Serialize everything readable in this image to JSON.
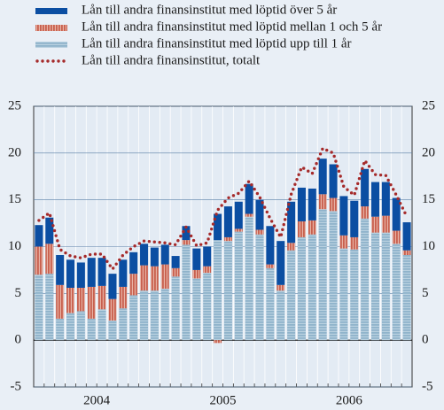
{
  "chart_data": {
    "type": "stacked_bar_line",
    "categories": [
      null,
      null,
      null,
      null,
      null,
      "2004",
      null,
      null,
      null,
      null,
      null,
      null,
      null,
      null,
      null,
      null,
      null,
      "2005",
      null,
      null,
      null,
      null,
      null,
      null,
      null,
      null,
      null,
      null,
      null,
      "2006",
      null,
      null,
      null,
      null,
      null,
      null
    ],
    "series": [
      {
        "name": "Lån till andra finansinstitut med löptid upp till 1 år",
        "color": "#8fb3cb",
        "pattern": "horizontal-stripes",
        "values": [
          7,
          7.1,
          2.3,
          2.9,
          3.1,
          2.3,
          3.3,
          2.1,
          3.4,
          4.8,
          5.3,
          5.3,
          5.5,
          6.8,
          10.2,
          6.6,
          7.2,
          10.7,
          10.6,
          11.6,
          13.2,
          11.3,
          7.7,
          5.3,
          9.6,
          11,
          11.3,
          14,
          13.8,
          9.8,
          9.7,
          13,
          11.5,
          11.5,
          10.3,
          9.1
        ]
      },
      {
        "name": "Lån till andra finansinstitut med löptid mellan 1 och 5 år",
        "color": "#c8604e",
        "pattern": "vertical-stripes",
        "values": [
          3.0,
          3.2,
          3.6,
          2.7,
          2.5,
          3.4,
          2.5,
          2.3,
          2.3,
          2.3,
          2.7,
          2.6,
          2.6,
          0.9,
          0.5,
          0.9,
          0.7,
          -0.3,
          0.4,
          0.3,
          0.3,
          0.5,
          0.4,
          0.6,
          0.8,
          1.7,
          1.5,
          1.6,
          1.4,
          1.4,
          1.3,
          1.3,
          1.7,
          1.8,
          1.4,
          0.5
        ]
      },
      {
        "name": "Lån till andra finansinstitut med löptid över 5 år",
        "color": "#0b4ea2",
        "pattern": "solid",
        "values": [
          2.3,
          2.8,
          3.2,
          3.0,
          2.7,
          3.1,
          3.0,
          2.7,
          2.9,
          2.3,
          2.3,
          2.0,
          2.1,
          1.3,
          1.5,
          2.3,
          2.1,
          2.8,
          3.3,
          2.9,
          3.2,
          3.2,
          4.1,
          4.7,
          4.4,
          3.6,
          3.4,
          3.8,
          3.6,
          4.2,
          3.9,
          4.0,
          3.7,
          3.6,
          3.5,
          3.0
        ]
      }
    ],
    "line": {
      "name": "Lån till andra finansinstitut, totalt",
      "color": "#a52a2a",
      "style": "dotted",
      "values": [
        12.8,
        13.6,
        9.7,
        9.0,
        8.8,
        9.2,
        9.2,
        7.6,
        9.1,
        10.0,
        10.6,
        10.5,
        10.4,
        10.2,
        12.1,
        10.1,
        10.4,
        13.9,
        15.2,
        15.7,
        17.0,
        15.3,
        13.0,
        11.0,
        15.6,
        18.5,
        17.8,
        20.5,
        20.0,
        16.4,
        15.5,
        19.2,
        17.7,
        17.6,
        15.5,
        13.2
      ]
    },
    "legend_order": [
      2,
      1,
      0
    ],
    "ylim": [
      -5,
      25
    ],
    "yticks": [
      -5,
      0,
      5,
      10,
      15,
      20,
      25
    ],
    "grid": true
  }
}
